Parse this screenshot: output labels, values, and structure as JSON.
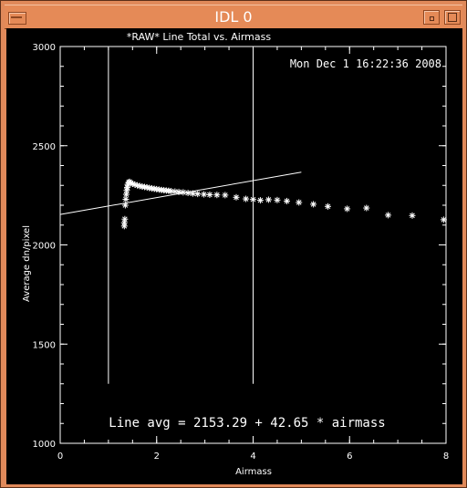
{
  "window": {
    "title": "IDL 0"
  },
  "chart_data": {
    "type": "scatter",
    "title": "*RAW* Line Total vs. Airmass",
    "xlabel": "Airmass",
    "ylabel": "Average dn/pixel",
    "xlim": [
      0,
      8
    ],
    "ylim": [
      1000,
      3000
    ],
    "x_ticks": [
      "0",
      "2",
      "4",
      "6",
      "8"
    ],
    "y_ticks": [
      "1000",
      "1500",
      "2000",
      "2500",
      "3000"
    ],
    "timestamp": "Mon Dec  1 16:22:36 2008",
    "annotation": "Line avg = 2153.29 + 42.65 * airmass",
    "vertical_lines_x": [
      1.0,
      4.0
    ],
    "vertical_line_range": [
      1300,
      2995
    ],
    "fit": {
      "intercept": 2153.29,
      "slope": 42.65,
      "x_range": [
        0,
        5.0
      ]
    },
    "points": [
      {
        "x": 1.33,
        "y": 2095
      },
      {
        "x": 1.33,
        "y": 2112
      },
      {
        "x": 1.34,
        "y": 2130
      },
      {
        "x": 1.35,
        "y": 2200
      },
      {
        "x": 1.36,
        "y": 2230
      },
      {
        "x": 1.37,
        "y": 2255
      },
      {
        "x": 1.38,
        "y": 2275
      },
      {
        "x": 1.39,
        "y": 2290
      },
      {
        "x": 1.4,
        "y": 2305
      },
      {
        "x": 1.42,
        "y": 2315
      },
      {
        "x": 1.44,
        "y": 2318
      },
      {
        "x": 1.47,
        "y": 2312
      },
      {
        "x": 1.5,
        "y": 2308
      },
      {
        "x": 1.55,
        "y": 2304
      },
      {
        "x": 1.6,
        "y": 2300
      },
      {
        "x": 1.65,
        "y": 2297
      },
      {
        "x": 1.7,
        "y": 2294
      },
      {
        "x": 1.75,
        "y": 2292
      },
      {
        "x": 1.8,
        "y": 2290
      },
      {
        "x": 1.85,
        "y": 2287
      },
      {
        "x": 1.9,
        "y": 2285
      },
      {
        "x": 1.95,
        "y": 2283
      },
      {
        "x": 2.0,
        "y": 2281
      },
      {
        "x": 2.05,
        "y": 2279
      },
      {
        "x": 2.1,
        "y": 2277
      },
      {
        "x": 2.15,
        "y": 2276
      },
      {
        "x": 2.2,
        "y": 2274
      },
      {
        "x": 2.25,
        "y": 2273
      },
      {
        "x": 2.3,
        "y": 2271
      },
      {
        "x": 2.38,
        "y": 2269
      },
      {
        "x": 2.46,
        "y": 2267
      },
      {
        "x": 2.55,
        "y": 2265
      },
      {
        "x": 2.65,
        "y": 2262
      },
      {
        "x": 2.75,
        "y": 2259
      },
      {
        "x": 2.85,
        "y": 2257
      },
      {
        "x": 2.98,
        "y": 2255
      },
      {
        "x": 3.1,
        "y": 2253
      },
      {
        "x": 3.25,
        "y": 2252
      },
      {
        "x": 3.42,
        "y": 2251
      },
      {
        "x": 3.65,
        "y": 2240
      },
      {
        "x": 3.85,
        "y": 2232
      },
      {
        "x": 4.0,
        "y": 2229
      },
      {
        "x": 4.15,
        "y": 2225
      },
      {
        "x": 4.32,
        "y": 2228
      },
      {
        "x": 4.5,
        "y": 2226
      },
      {
        "x": 4.7,
        "y": 2221
      },
      {
        "x": 4.95,
        "y": 2214
      },
      {
        "x": 5.25,
        "y": 2205
      },
      {
        "x": 5.55,
        "y": 2194
      },
      {
        "x": 5.95,
        "y": 2182
      },
      {
        "x": 6.35,
        "y": 2186
      },
      {
        "x": 6.8,
        "y": 2150
      },
      {
        "x": 7.3,
        "y": 2148
      },
      {
        "x": 7.95,
        "y": 2127
      }
    ],
    "grid": false,
    "colors": {
      "background": "#000000",
      "foreground": "#ffffff"
    }
  }
}
